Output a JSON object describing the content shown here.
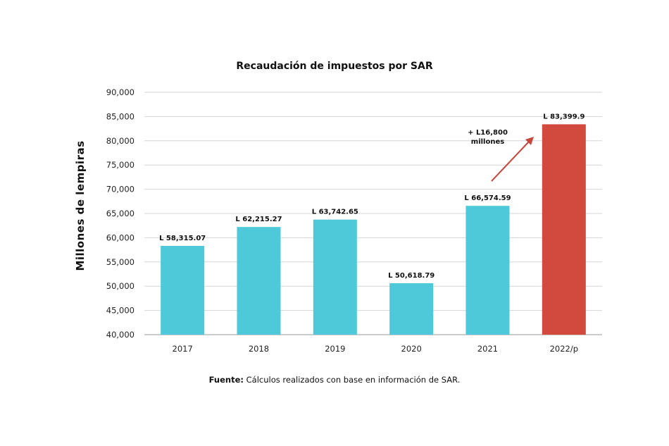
{
  "chart_data": {
    "type": "bar",
    "title": "Recaudación de impuestos por SAR",
    "xlabel": "",
    "ylabel": "Millones de lempiras",
    "categories": [
      "2017",
      "2018",
      "2019",
      "2020",
      "2021",
      "2022/p"
    ],
    "values": [
      58315.07,
      62215.27,
      63742.65,
      50618.79,
      66574.59,
      83399.9
    ],
    "data_labels": [
      "L 58,315.07",
      "L 62,215.27",
      "L 63,742.65",
      "L 50,618.79",
      "L 66,574.59",
      "L 83,399.9"
    ],
    "bar_colors": [
      "#4ec9d9",
      "#4ec9d9",
      "#4ec9d9",
      "#4ec9d9",
      "#4ec9d9",
      "#d24a3d"
    ],
    "ylim": [
      40000,
      90000
    ],
    "yticks": [
      40000,
      45000,
      50000,
      55000,
      60000,
      65000,
      70000,
      75000,
      80000,
      85000,
      90000
    ],
    "ytick_labels": [
      "40,000",
      "45,000",
      "50,000",
      "55,000",
      "60,000",
      "65,000",
      "70,000",
      "75,000",
      "80,000",
      "85,000",
      "90,000"
    ],
    "grid": true,
    "annotation": {
      "line1": "+ L16,800",
      "line2": "millones",
      "arrow_color": "#c8463a"
    }
  },
  "source": {
    "label": "Fuente:",
    "text": " Cálculos realizados con base en información de SAR."
  }
}
